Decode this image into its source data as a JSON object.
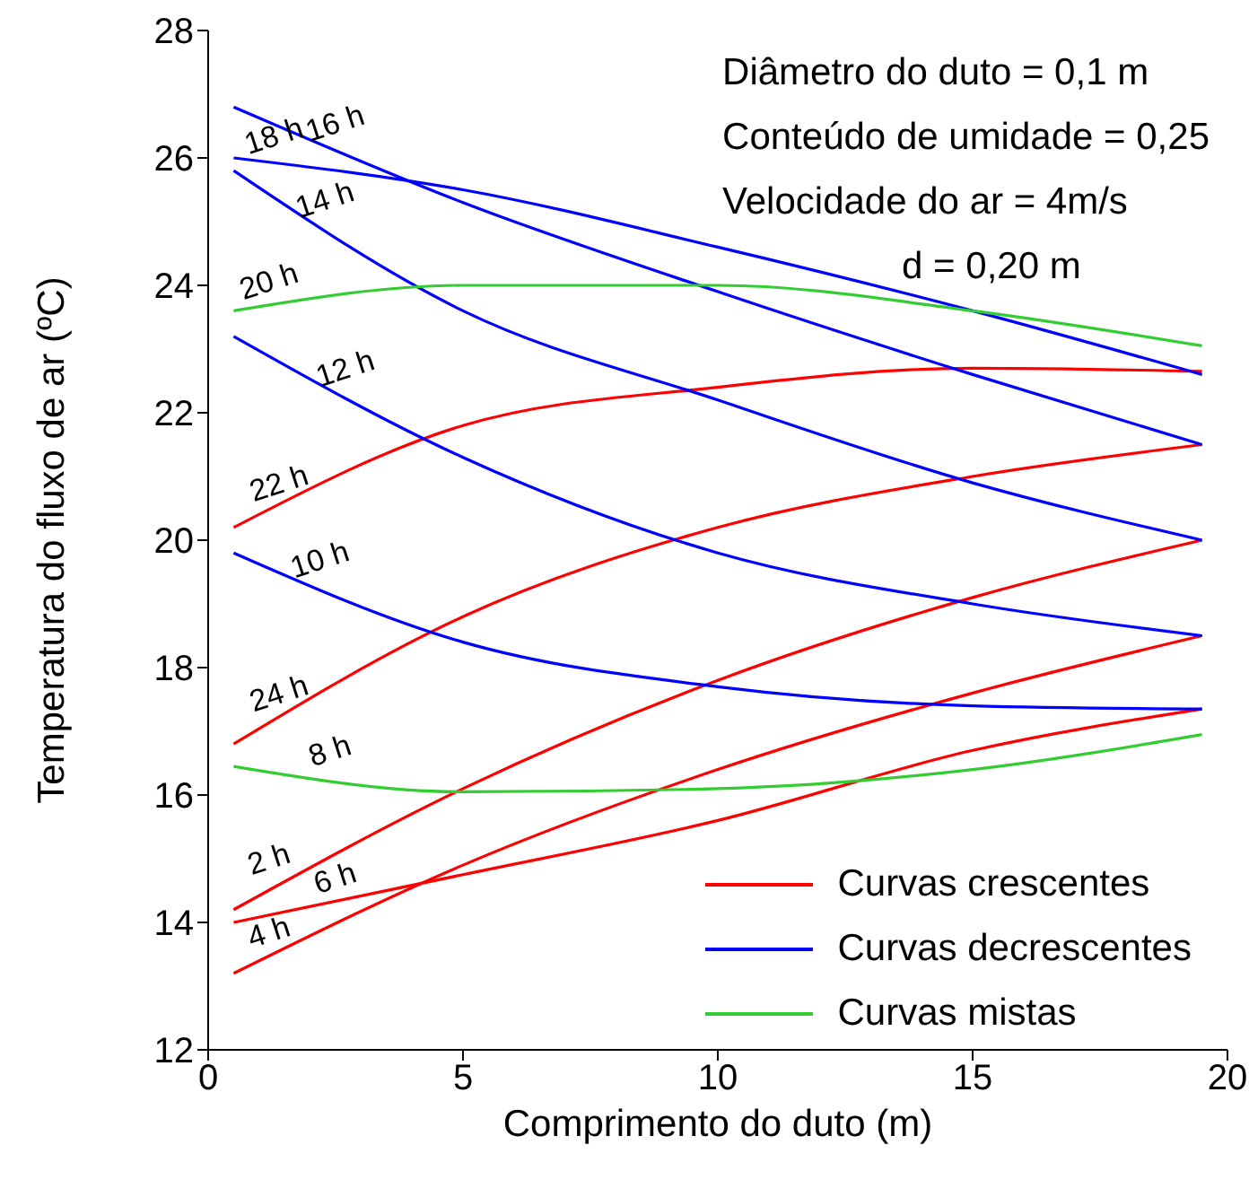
{
  "chart_data": {
    "type": "line",
    "xlabel": "Comprimento do duto (m)",
    "ylabel": "Temperatura do fluxo de ar (ºC)",
    "x": [
      0.5,
      5,
      10,
      15,
      19.5
    ],
    "series": [
      {
        "name": "Curvas crescentes",
        "color": "#ff0000",
        "values": [
          20.2,
          21.8,
          22.4,
          22.7,
          22.65
        ]
      },
      {
        "color": "#ff0000",
        "values": [
          16.8,
          18.8,
          20.2,
          21.0,
          21.5
        ]
      },
      {
        "color": "#ff0000",
        "values": [
          14.2,
          16.1,
          17.8,
          19.1,
          20.0
        ]
      },
      {
        "color": "#ff0000",
        "values": [
          13.2,
          14.9,
          16.4,
          17.6,
          18.5
        ]
      },
      {
        "color": "#ff0000",
        "values": [
          14.0,
          14.75,
          15.6,
          16.7,
          17.35
        ]
      },
      {
        "name": "Curvas decrescentes",
        "color": "#0000ff",
        "values": [
          26.0,
          25.5,
          24.6,
          23.6,
          22.6
        ]
      },
      {
        "color": "#0000ff",
        "values": [
          26.8,
          25.3,
          23.9,
          22.6,
          21.5
        ]
      },
      {
        "color": "#0000ff",
        "values": [
          25.8,
          23.6,
          22.2,
          20.9,
          20.0
        ]
      },
      {
        "color": "#0000ff",
        "values": [
          23.2,
          21.3,
          19.8,
          19.0,
          18.5
        ]
      },
      {
        "color": "#0000ff",
        "values": [
          19.8,
          18.4,
          17.7,
          17.4,
          17.35
        ]
      },
      {
        "name": "Curvas mistas",
        "color": "#33cc33",
        "values": [
          23.6,
          24.0,
          24.0,
          23.6,
          23.05
        ]
      },
      {
        "color": "#33cc33",
        "values": [
          16.45,
          16.05,
          16.1,
          16.4,
          16.95
        ]
      }
    ],
    "xlim": [
      0,
      20
    ],
    "xticks": [
      0,
      5,
      10,
      15,
      20
    ],
    "ylim": [
      12,
      28
    ],
    "yticks": [
      12,
      14,
      16,
      18,
      20,
      22,
      24,
      26,
      28
    ],
    "grid": false,
    "legend": "bottom right",
    "marker": "none",
    "line_style": "solid",
    "annotations": [
      "Diâmetro do duto = 0,1 m",
      "Conteúdo de umidade = 0,25",
      "Velocidade do ar = 4m/s",
      "d = 0,20 m",
      {
        "text": "16 h",
        "x": 2.5,
        "y": 26.15
      },
      {
        "text": "18 h",
        "x": 1.3,
        "y": 25.95
      },
      {
        "text": "14 h",
        "x": 2.3,
        "y": 24.95
      },
      {
        "text": "20 h",
        "x": 1.2,
        "y": 23.67
      },
      {
        "text": "12 h",
        "x": 2.7,
        "y": 22.3
      },
      {
        "text": "22 h",
        "x": 1.4,
        "y": 20.5
      },
      {
        "text": "10 h",
        "x": 2.2,
        "y": 19.3
      },
      {
        "text": "24 h",
        "x": 1.4,
        "y": 17.2
      },
      {
        "text": "8 h",
        "x": 2.4,
        "y": 16.3
      },
      {
        "text": "2 h",
        "x": 1.2,
        "y": 14.6
      },
      {
        "text": "6 h",
        "x": 2.5,
        "y": 14.3
      },
      {
        "text": "4 h",
        "x": 1.2,
        "y": 13.45
      }
    ]
  }
}
